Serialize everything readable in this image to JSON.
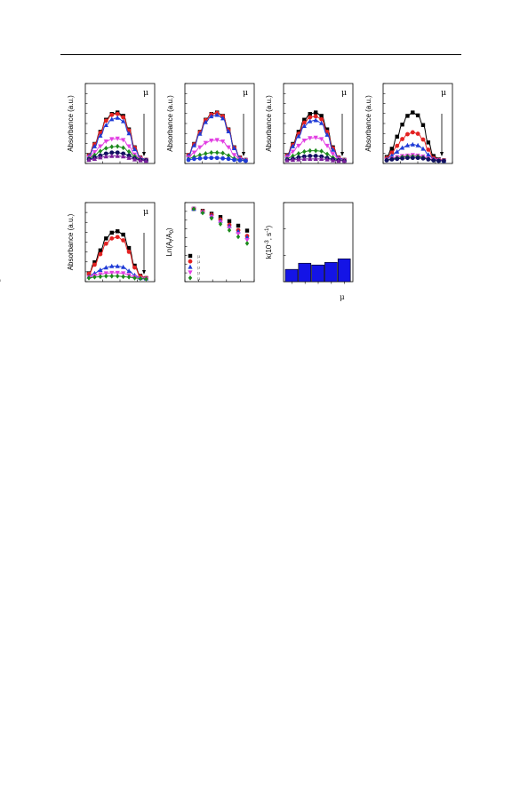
{
  "page": {
    "has_header_rule": true
  },
  "chart_data": [
    {
      "type": "line",
      "panel": 1,
      "ylabel": "Absorbance (a.u.)",
      "annotation": "μ",
      "arrow": "down",
      "series": [
        {
          "color": "#000000",
          "marker": "square",
          "values": [
            0.12,
            0.35,
            0.6,
            0.85,
            0.97,
            1.0,
            0.93,
            0.65,
            0.28,
            0.07,
            0.02
          ]
        },
        {
          "color": "#e32222",
          "marker": "circle",
          "values": [
            0.11,
            0.34,
            0.58,
            0.83,
            0.95,
            0.97,
            0.9,
            0.63,
            0.27,
            0.07,
            0.02
          ]
        },
        {
          "color": "#1f3bd6",
          "marker": "triangle",
          "values": [
            0.1,
            0.3,
            0.52,
            0.74,
            0.86,
            0.89,
            0.82,
            0.57,
            0.24,
            0.06,
            0.02
          ]
        },
        {
          "color": "#e23fe2",
          "marker": "triangle-down",
          "values": [
            0.07,
            0.18,
            0.3,
            0.4,
            0.45,
            0.46,
            0.43,
            0.3,
            0.13,
            0.04,
            0.01
          ]
        },
        {
          "color": "#1c8a1c",
          "marker": "diamond",
          "values": [
            0.05,
            0.12,
            0.2,
            0.26,
            0.29,
            0.3,
            0.27,
            0.19,
            0.09,
            0.03,
            0.01
          ]
        },
        {
          "color": "#101060",
          "marker": "circle",
          "values": [
            0.03,
            0.07,
            0.11,
            0.15,
            0.17,
            0.17,
            0.15,
            0.11,
            0.05,
            0.02,
            0.01
          ]
        },
        {
          "color": "#7a1f9a",
          "marker": "triangle",
          "values": [
            0.02,
            0.04,
            0.07,
            0.09,
            0.1,
            0.1,
            0.09,
            0.06,
            0.03,
            0.01,
            0.0
          ]
        }
      ]
    },
    {
      "type": "line",
      "panel": 2,
      "ylabel": "Absorbance (a.u.)",
      "annotation": "μ",
      "arrow": "down",
      "series": [
        {
          "color": "#000000",
          "marker": "square",
          "values": [
            0.12,
            0.35,
            0.6,
            0.85,
            0.97,
            1.0,
            0.93,
            0.65,
            0.28,
            0.07,
            0.02
          ]
        },
        {
          "color": "#e32222",
          "marker": "circle",
          "values": [
            0.12,
            0.34,
            0.59,
            0.84,
            0.96,
            0.99,
            0.92,
            0.64,
            0.27,
            0.07,
            0.02
          ]
        },
        {
          "color": "#1f3bd6",
          "marker": "triangle",
          "values": [
            0.11,
            0.32,
            0.56,
            0.8,
            0.92,
            0.95,
            0.88,
            0.61,
            0.26,
            0.06,
            0.02
          ]
        },
        {
          "color": "#e23fe2",
          "marker": "triangle-down",
          "values": [
            0.07,
            0.17,
            0.28,
            0.37,
            0.42,
            0.43,
            0.4,
            0.28,
            0.12,
            0.03,
            0.01
          ]
        },
        {
          "color": "#1c8a1c",
          "marker": "diamond",
          "values": [
            0.04,
            0.08,
            0.12,
            0.15,
            0.17,
            0.17,
            0.16,
            0.11,
            0.05,
            0.02,
            0.01
          ]
        },
        {
          "color": "#1f3bd6",
          "marker": "circle",
          "values": [
            0.02,
            0.04,
            0.05,
            0.06,
            0.06,
            0.06,
            0.05,
            0.04,
            0.02,
            0.01,
            0.0
          ]
        }
      ]
    },
    {
      "type": "line",
      "panel": 3,
      "ylabel": "Absorbance (a.u.)",
      "annotation": "μ",
      "arrow": "down",
      "series": [
        {
          "color": "#000000",
          "marker": "square",
          "values": [
            0.12,
            0.35,
            0.6,
            0.85,
            0.97,
            1.0,
            0.93,
            0.65,
            0.28,
            0.07,
            0.02
          ]
        },
        {
          "color": "#e32222",
          "marker": "circle",
          "values": [
            0.11,
            0.33,
            0.56,
            0.79,
            0.9,
            0.92,
            0.86,
            0.6,
            0.26,
            0.07,
            0.02
          ]
        },
        {
          "color": "#1f3bd6",
          "marker": "triangle",
          "values": [
            0.1,
            0.3,
            0.51,
            0.72,
            0.82,
            0.84,
            0.78,
            0.54,
            0.23,
            0.06,
            0.02
          ]
        },
        {
          "color": "#e23fe2",
          "marker": "triangle-down",
          "values": [
            0.07,
            0.19,
            0.31,
            0.42,
            0.47,
            0.48,
            0.45,
            0.31,
            0.14,
            0.04,
            0.01
          ]
        },
        {
          "color": "#1c8a1c",
          "marker": "diamond",
          "values": [
            0.04,
            0.1,
            0.15,
            0.19,
            0.21,
            0.21,
            0.2,
            0.14,
            0.07,
            0.02,
            0.01
          ]
        },
        {
          "color": "#101060",
          "marker": "circle",
          "values": [
            0.02,
            0.04,
            0.07,
            0.09,
            0.1,
            0.1,
            0.09,
            0.06,
            0.03,
            0.01,
            0.0
          ]
        },
        {
          "color": "#7a1f9a",
          "marker": "triangle",
          "values": [
            0.01,
            0.02,
            0.03,
            0.04,
            0.04,
            0.04,
            0.04,
            0.03,
            0.01,
            0.0,
            0.0
          ]
        }
      ]
    },
    {
      "type": "line",
      "panel": 4,
      "ylabel": "Absorbance (a.u.)",
      "annotation": "μ",
      "arrow": "down",
      "series": [
        {
          "color": "#000000",
          "marker": "square",
          "values": [
            0.08,
            0.25,
            0.5,
            0.75,
            0.93,
            1.0,
            0.94,
            0.74,
            0.38,
            0.1,
            0.03,
            0.01
          ]
        },
        {
          "color": "#e32222",
          "marker": "circle",
          "values": [
            0.06,
            0.17,
            0.31,
            0.45,
            0.55,
            0.59,
            0.56,
            0.44,
            0.23,
            0.06,
            0.02,
            0.01
          ]
        },
        {
          "color": "#1f3bd6",
          "marker": "triangle",
          "values": [
            0.04,
            0.11,
            0.19,
            0.27,
            0.32,
            0.34,
            0.32,
            0.25,
            0.13,
            0.04,
            0.01,
            0.0
          ]
        },
        {
          "color": "#e23fe2",
          "marker": "triangle-down",
          "values": [
            0.02,
            0.05,
            0.08,
            0.1,
            0.11,
            0.12,
            0.11,
            0.09,
            0.05,
            0.02,
            0.01,
            0.0
          ]
        },
        {
          "color": "#1c8a1c",
          "marker": "diamond",
          "values": [
            0.02,
            0.04,
            0.06,
            0.08,
            0.09,
            0.09,
            0.09,
            0.07,
            0.04,
            0.01,
            0.0,
            0.0
          ]
        },
        {
          "color": "#101060",
          "marker": "circle",
          "values": [
            0.01,
            0.03,
            0.04,
            0.05,
            0.06,
            0.06,
            0.06,
            0.05,
            0.03,
            0.01,
            0.0,
            0.0
          ]
        }
      ]
    },
    {
      "type": "line",
      "panel": 5,
      "ylabel": "Absorbance (a.u.)",
      "annotation": "μ",
      "arrow": "down",
      "series": [
        {
          "color": "#000000",
          "marker": "square",
          "values": [
            0.12,
            0.35,
            0.6,
            0.85,
            0.97,
            1.0,
            0.93,
            0.65,
            0.28,
            0.07,
            0.02
          ]
        },
        {
          "color": "#e32222",
          "marker": "circle",
          "values": [
            0.11,
            0.3,
            0.52,
            0.74,
            0.85,
            0.88,
            0.81,
            0.57,
            0.24,
            0.06,
            0.02
          ]
        },
        {
          "color": "#1f3bd6",
          "marker": "triangle",
          "values": [
            0.05,
            0.12,
            0.19,
            0.24,
            0.27,
            0.27,
            0.25,
            0.17,
            0.08,
            0.02,
            0.01
          ]
        },
        {
          "color": "#e23fe2",
          "marker": "triangle-down",
          "values": [
            0.03,
            0.07,
            0.1,
            0.12,
            0.13,
            0.13,
            0.12,
            0.08,
            0.04,
            0.01,
            0.0
          ]
        },
        {
          "color": "#1c8a1c",
          "marker": "diamond",
          "values": [
            0.02,
            0.04,
            0.05,
            0.06,
            0.06,
            0.06,
            0.05,
            0.04,
            0.02,
            0.01,
            0.0
          ]
        }
      ]
    },
    {
      "type": "scatter",
      "panel": 6,
      "ylabel": "Ln(At/A0)",
      "ylabel_main": "Ln(A",
      "ylabel_sub1": "t",
      "ylabel_mid": "/A",
      "ylabel_sub2": "0",
      "ylabel_end": ")",
      "legend_placement": "bottom-left",
      "legend_mark": "μ",
      "series": [
        {
          "color": "#000000",
          "marker": "square",
          "values": [
            0.0,
            -0.05,
            -0.12,
            -0.2,
            -0.3,
            -0.41,
            -0.53
          ]
        },
        {
          "color": "#e32222",
          "marker": "circle",
          "values": [
            0.0,
            -0.06,
            -0.15,
            -0.26,
            -0.39,
            -0.52,
            -0.66
          ]
        },
        {
          "color": "#1f3bd6",
          "marker": "triangle",
          "values": [
            0.0,
            -0.07,
            -0.17,
            -0.29,
            -0.42,
            -0.55,
            -0.69
          ]
        },
        {
          "color": "#e23fe2",
          "marker": "triangle-down",
          "values": [
            0.0,
            -0.09,
            -0.2,
            -0.33,
            -0.47,
            -0.61,
            -0.76
          ]
        },
        {
          "color": "#1c8a1c",
          "marker": "diamond",
          "values": [
            0.0,
            -0.1,
            -0.23,
            -0.37,
            -0.52,
            -0.68,
            -0.84
          ]
        }
      ]
    },
    {
      "type": "bar",
      "panel": 7,
      "ylabel": "k(10⁻³, s⁻¹)",
      "ylabel_main": "k(10",
      "ylabel_sup1": "-3",
      "ylabel_mid": ", s",
      "ylabel_sup2": "-1",
      "ylabel_end": ")",
      "xlabel": "μ",
      "bar_color": "#1414e6",
      "values": [
        1.4,
        2.1,
        1.9,
        2.2,
        2.6
      ],
      "ylim": [
        0,
        9
      ]
    }
  ]
}
